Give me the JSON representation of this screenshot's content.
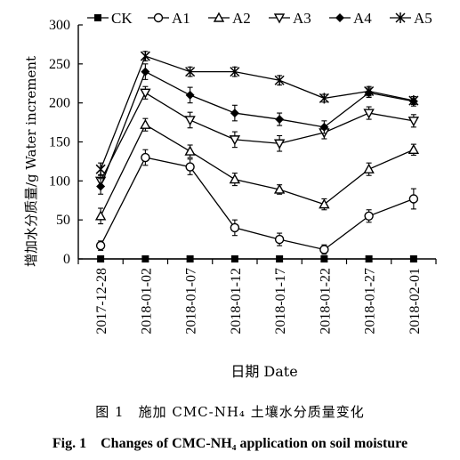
{
  "chart_data": {
    "type": "line",
    "title": "",
    "xlabel": "日期 Date",
    "ylabel": "增加水分质量/g Water increment",
    "ylim": [
      0,
      300
    ],
    "yticks": [
      0,
      50,
      100,
      150,
      200,
      250,
      300
    ],
    "grid": false,
    "legend_position": "top",
    "x": [
      "2017-12-28",
      "2018-01-02",
      "2018-01-07",
      "2018-01-12",
      "2018-01-17",
      "2018-01-22",
      "2018-01-27",
      "2018-02-01"
    ],
    "series": [
      {
        "name": "CK",
        "marker": "filled-square",
        "values": [
          0,
          0,
          0,
          0,
          0,
          0,
          0,
          0
        ],
        "errors": [
          0,
          0,
          0,
          0,
          0,
          0,
          0,
          0
        ]
      },
      {
        "name": "A1",
        "marker": "open-circle",
        "values": [
          17,
          130,
          118,
          40,
          25,
          12,
          55,
          77
        ],
        "errors": [
          6,
          10,
          10,
          10,
          8,
          6,
          8,
          13
        ]
      },
      {
        "name": "A2",
        "marker": "open-triangle-up",
        "values": [
          55,
          172,
          138,
          102,
          89,
          70,
          115,
          140
        ],
        "errors": [
          10,
          8,
          8,
          8,
          6,
          7,
          8,
          7
        ]
      },
      {
        "name": "A3",
        "marker": "open-triangle-down",
        "values": [
          100,
          213,
          178,
          153,
          148,
          162,
          187,
          177
        ],
        "errors": [
          8,
          8,
          10,
          10,
          10,
          8,
          8,
          8
        ]
      },
      {
        "name": "A4",
        "marker": "filled-diamond",
        "values": [
          93,
          240,
          210,
          187,
          179,
          169,
          213,
          202
        ],
        "errors": [
          10,
          10,
          10,
          10,
          8,
          8,
          6,
          6
        ]
      },
      {
        "name": "A5",
        "marker": "star",
        "values": [
          115,
          260,
          240,
          240,
          229,
          206,
          215,
          203
        ],
        "errors": [
          8,
          6,
          6,
          6,
          6,
          5,
          6,
          5
        ]
      }
    ]
  },
  "caption": {
    "cn": "图 1　施加 CMC-NH₄ 土壤水分质量变化",
    "en": "Fig. 1　Changes of CMC-NH₄ application on soil moisture"
  }
}
